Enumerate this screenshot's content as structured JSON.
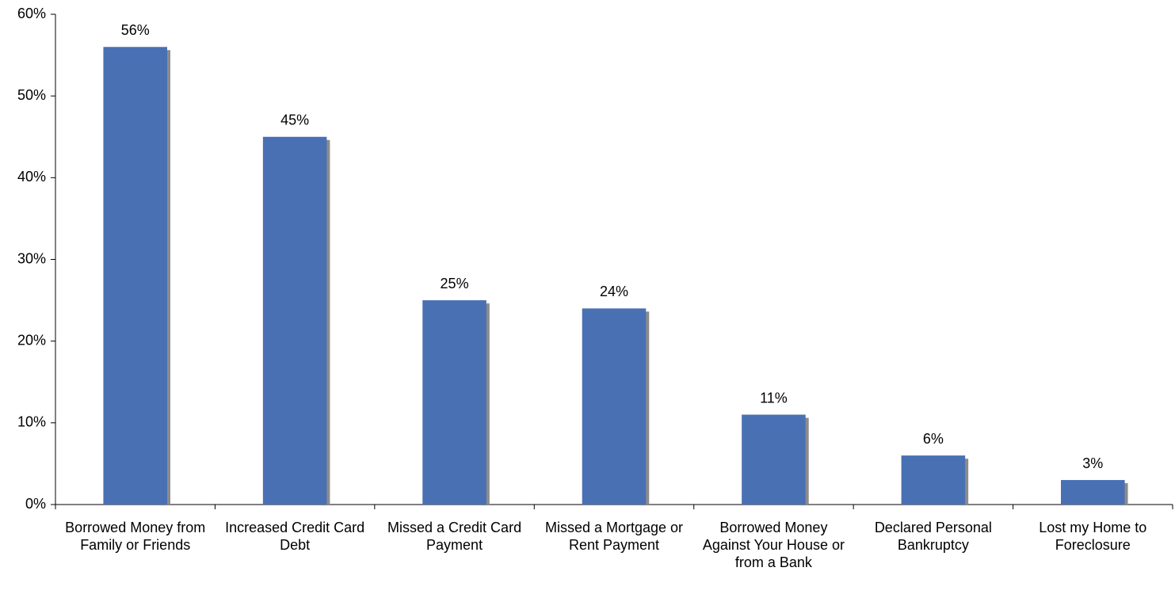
{
  "chart_data": {
    "type": "bar",
    "categories": [
      "Borrowed Money from Family or Friends",
      "Increased Credit Card Debt",
      "Missed a Credit Card Payment",
      "Missed a Mortgage or Rent Payment",
      "Borrowed Money Against Your House or from a Bank",
      "Declared Personal Bankruptcy",
      "Lost my Home to Foreclosure"
    ],
    "values": [
      56,
      45,
      25,
      24,
      11,
      6,
      3
    ],
    "value_labels": [
      "56%",
      "45%",
      "25%",
      "24%",
      "11%",
      "6%",
      "3%"
    ],
    "color": "#4a70b4",
    "ylim": [
      0,
      60
    ],
    "yticks": [
      {
        "value": 0,
        "label": "0%"
      },
      {
        "value": 10,
        "label": "10%"
      },
      {
        "value": 20,
        "label": "20%"
      },
      {
        "value": 30,
        "label": "30%"
      },
      {
        "value": 40,
        "label": "40%"
      },
      {
        "value": 50,
        "label": "50%"
      },
      {
        "value": 60,
        "label": "60%"
      }
    ],
    "grid": false
  }
}
